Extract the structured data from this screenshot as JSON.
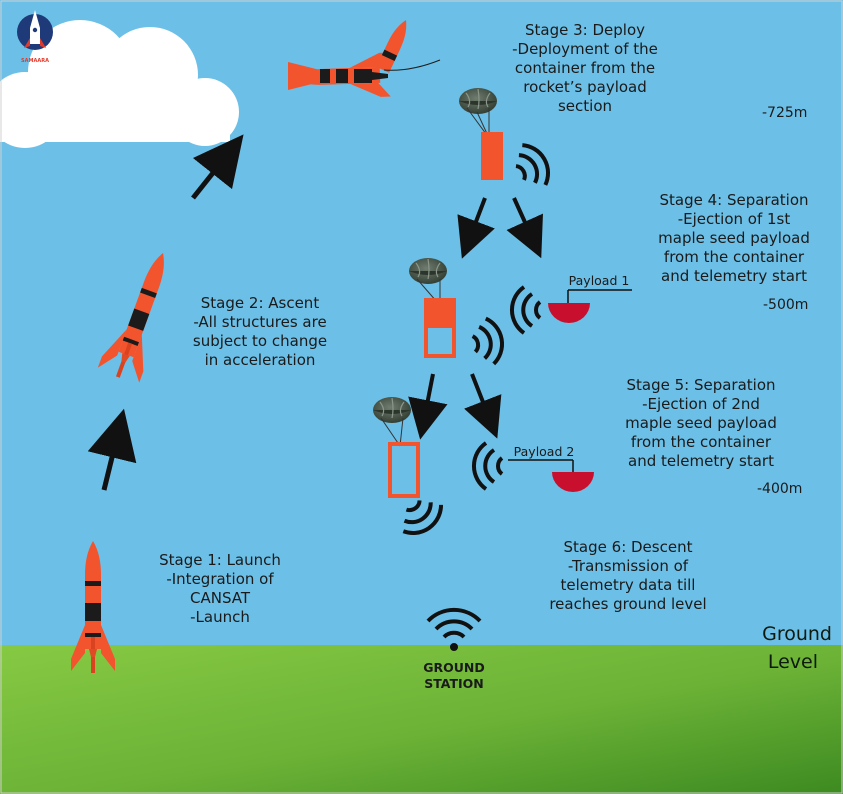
{
  "stages": [
    {
      "title": "Stage 1: Launch",
      "lines": [
        "-Integration of",
        "CANSAT",
        "-Launch"
      ]
    },
    {
      "title": "Stage 2: Ascent",
      "lines": [
        "-All structures are",
        "subject to change",
        "in acceleration"
      ]
    },
    {
      "title": "Stage 3: Deploy",
      "lines": [
        "-Deployment of the",
        "container from the",
        "rocket’s payload",
        "section"
      ]
    },
    {
      "title": "Stage 4: Separation",
      "lines": [
        "-Ejection of 1st",
        "maple seed payload",
        "from the container",
        "and telemetry start"
      ]
    },
    {
      "title": "Stage 5: Separation",
      "lines": [
        "-Ejection of 2nd",
        "maple seed payload",
        "from the container",
        "and telemetry start"
      ]
    },
    {
      "title": "Stage 6: Descent",
      "lines": [
        "-Transmission of",
        "telemetry data till",
        "reaches ground level"
      ]
    }
  ],
  "altitudes": [
    "-725m",
    "-500m",
    "-400m"
  ],
  "ground_label": [
    "Ground",
    "Level"
  ],
  "ground_station": [
    "GROUND",
    "STATION"
  ],
  "payloads": [
    "Payload 1",
    "Payload 2"
  ],
  "logo_text": "SAMAARA",
  "colors": {
    "sky": "#6cbfe6",
    "ground_light": "#7ec23e",
    "ground_dark": "#3f8a22",
    "rocket": "#f2542d",
    "rocket_band": "#1b1b1b",
    "container": "#f2542d",
    "payload_dome": "#c8102e",
    "parachute": "#3d4a3d",
    "arrow": "#111111"
  }
}
